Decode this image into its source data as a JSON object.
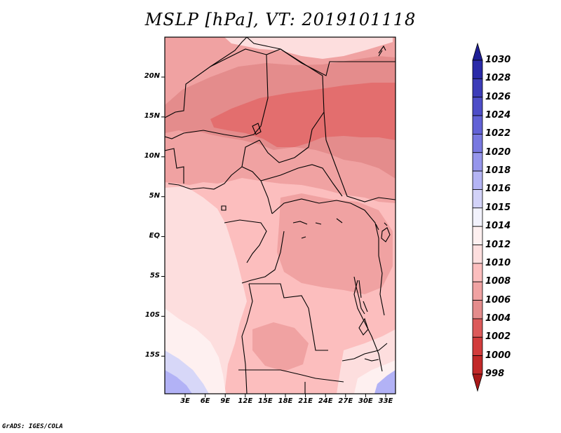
{
  "title": "MSLP [hPa], VT: 2019101118",
  "footer": "GrADS: IGES/COLA",
  "map": {
    "lat_labels": [
      "20N",
      "15N",
      "10N",
      "5N",
      "EQ",
      "5S",
      "10S",
      "15S"
    ],
    "lon_labels": [
      "3E",
      "6E",
      "9E",
      "12E",
      "15E",
      "18E",
      "21E",
      "24E",
      "27E",
      "30E",
      "33E"
    ],
    "colors": {
      "p1004": "#e36e6e",
      "p1006": "#e48c8c",
      "p1008": "#f0a2a2",
      "p1010": "#fcbebe",
      "p1012": "#fddede",
      "p1014": "#fef0f0",
      "p1016": "#d7d7f8",
      "p1018": "#b2b2f6",
      "p1020": "#9494ee"
    }
  },
  "colorbar": {
    "levels": [
      "1030",
      "1028",
      "1026",
      "1024",
      "1022",
      "1020",
      "1018",
      "1016",
      "1015",
      "1014",
      "1012",
      "1010",
      "1008",
      "1006",
      "1004",
      "1002",
      "1000",
      "998"
    ],
    "colors": [
      "#1e1e96",
      "#2a2aa8",
      "#3c3cb8",
      "#4e4ec8",
      "#6262d6",
      "#7878e0",
      "#9696ec",
      "#b4b4f4",
      "#d2d2f8",
      "#f2f2fc",
      "#fef0f0",
      "#fddede",
      "#fcbebe",
      "#f0a2a2",
      "#e48c8c",
      "#dc5a5a",
      "#d23c3c",
      "#c22828",
      "#a81818"
    ]
  }
}
